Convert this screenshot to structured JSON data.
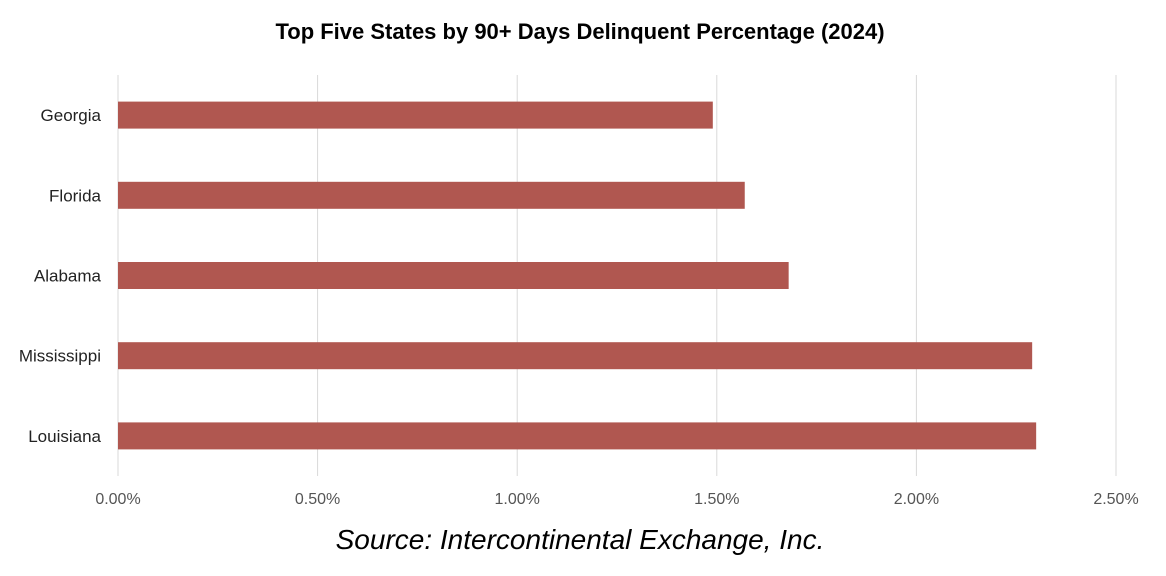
{
  "chart_data": {
    "type": "bar",
    "orientation": "horizontal",
    "title": "Top Five States by 90+ Days Delinquent Percentage (2024)",
    "categories": [
      "Georgia",
      "Florida",
      "Alabama",
      "Mississippi",
      "Louisiana"
    ],
    "values": [
      1.49,
      1.57,
      1.68,
      2.29,
      2.3
    ],
    "xlim": [
      0,
      2.5
    ],
    "x_ticks": [
      "0.00%",
      "0.50%",
      "1.00%",
      "1.50%",
      "2.00%",
      "2.50%"
    ],
    "grid": "vertical",
    "bar_color": "#b05750",
    "grid_color": "#d9d9d9",
    "legend": "none"
  },
  "source": "Source: Intercontinental Exchange, Inc."
}
